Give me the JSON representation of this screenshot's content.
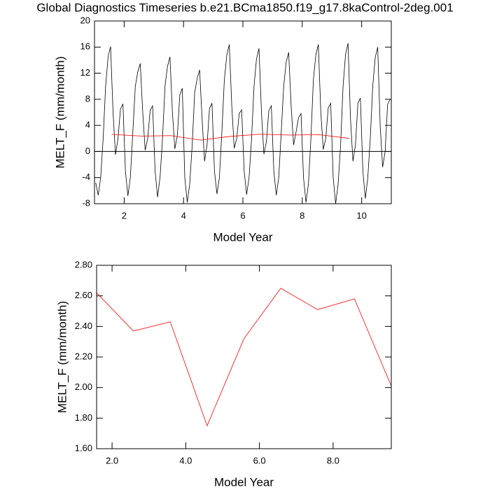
{
  "chart_data": [
    {
      "type": "line",
      "title": "Global Diagnostics Timeseries b.e21.BCma1850.f19_g17.8kaControl-2deg.001",
      "xlabel": "Model Year",
      "ylabel": "MELT_F (mm/month)",
      "xlim": [
        1,
        11
      ],
      "ylim": [
        -8,
        20
      ],
      "xticks": [
        2,
        4,
        6,
        8,
        10
      ],
      "yticks": [
        -8,
        -4,
        0,
        4,
        8,
        12,
        16,
        20
      ],
      "hline": 0,
      "series": [
        {
          "color": "#000000",
          "x": [
            1.042,
            1.125,
            1.208,
            1.292,
            1.375,
            1.458,
            1.542,
            1.625,
            1.708,
            1.792,
            1.875,
            1.958,
            2.042,
            2.125,
            2.208,
            2.292,
            2.375,
            2.458,
            2.542,
            2.625,
            2.708,
            2.792,
            2.875,
            2.958,
            3.042,
            3.125,
            3.208,
            3.292,
            3.375,
            3.458,
            3.542,
            3.625,
            3.708,
            3.792,
            3.875,
            3.958,
            4.042,
            4.125,
            4.208,
            4.292,
            4.375,
            4.458,
            4.542,
            4.625,
            4.708,
            4.792,
            4.875,
            4.958,
            5.042,
            5.125,
            5.208,
            5.292,
            5.375,
            5.458,
            5.542,
            5.625,
            5.708,
            5.792,
            5.875,
            5.958,
            6.042,
            6.125,
            6.208,
            6.292,
            6.375,
            6.458,
            6.542,
            6.625,
            6.708,
            6.792,
            6.875,
            6.958,
            7.042,
            7.125,
            7.208,
            7.292,
            7.375,
            7.458,
            7.542,
            7.625,
            7.708,
            7.792,
            7.875,
            7.958,
            8.042,
            8.125,
            8.208,
            8.292,
            8.375,
            8.458,
            8.542,
            8.625,
            8.708,
            8.792,
            8.875,
            8.958,
            9.042,
            9.125,
            9.208,
            9.292,
            9.375,
            9.458,
            9.542,
            9.625,
            9.708,
            9.792,
            9.875,
            9.958,
            10.042,
            10.125,
            10.208,
            10.292,
            10.375,
            10.458,
            10.542,
            10.625,
            10.708,
            10.792,
            10.875,
            10.958
          ],
          "values": [
            -4.8,
            -6.7,
            -4,
            2,
            10,
            14.5,
            16.1,
            6,
            -0.5,
            2,
            6.5,
            7.3,
            -3,
            -6.8,
            -4,
            3,
            10,
            12.2,
            13.5,
            6,
            0.2,
            2,
            6.3,
            7.0,
            -3,
            -7.0,
            -4,
            2,
            10,
            13,
            14.5,
            6,
            0.4,
            2.5,
            8.7,
            9.7,
            -4,
            -7.8,
            -5,
            1,
            9,
            11.2,
            12.5,
            5,
            -1.5,
            1,
            6.6,
            7.4,
            -3,
            -6.5,
            -4,
            3,
            11,
            14.8,
            16.4,
            7,
            0.5,
            2,
            5.8,
            6.4,
            -3,
            -6.6,
            -4,
            2,
            10,
            14.2,
            15.8,
            6,
            -0.4,
            1.5,
            6.3,
            7.0,
            -3,
            -6.7,
            -4,
            3,
            10,
            13.7,
            15.2,
            7,
            1.0,
            3,
            5.2,
            5.8,
            -4,
            -7.8,
            -5,
            2,
            11,
            14.8,
            16.4,
            6,
            0.3,
            2,
            6.7,
            7.4,
            -4,
            -8,
            -5,
            1,
            10,
            14.9,
            16.6,
            5,
            -1.5,
            1,
            7.4,
            8.2,
            -3,
            -7.2,
            -4,
            2,
            10,
            14.4,
            16,
            4,
            -2.4,
            0,
            7.2,
            8.0
          ]
        },
        {
          "color": "#ff0000",
          "x": [
            1.58,
            2.58,
            3.58,
            4.58,
            5.58,
            6.58,
            7.58,
            8.58,
            9.58
          ],
          "values": [
            2.62,
            2.37,
            2.43,
            1.75,
            2.32,
            2.65,
            2.51,
            2.58,
            2.01
          ]
        }
      ]
    },
    {
      "type": "line",
      "xlabel": "Model Year",
      "ylabel": "MELT_F (mm/month)",
      "xlim": [
        1.58,
        9.58
      ],
      "ylim": [
        1.6,
        2.8
      ],
      "xticks": [
        {
          "value": 2,
          "label": "2.0"
        },
        {
          "value": 4,
          "label": "4.0"
        },
        {
          "value": 6,
          "label": "6.0"
        },
        {
          "value": 8,
          "label": "8.0"
        }
      ],
      "yticks": [
        {
          "value": 1.6,
          "label": "1.60"
        },
        {
          "value": 1.8,
          "label": "1.80"
        },
        {
          "value": 2.0,
          "label": "2.00"
        },
        {
          "value": 2.2,
          "label": "2.20"
        },
        {
          "value": 2.4,
          "label": "2.40"
        },
        {
          "value": 2.6,
          "label": "2.60"
        },
        {
          "value": 2.8,
          "label": "2.80"
        }
      ],
      "series": [
        {
          "color": "#ff0000",
          "x": [
            1.58,
            2.58,
            3.58,
            4.58,
            5.58,
            6.58,
            7.58,
            8.58,
            9.58
          ],
          "values": [
            2.62,
            2.37,
            2.43,
            1.75,
            2.32,
            2.65,
            2.51,
            2.58,
            2.01
          ]
        }
      ]
    }
  ]
}
